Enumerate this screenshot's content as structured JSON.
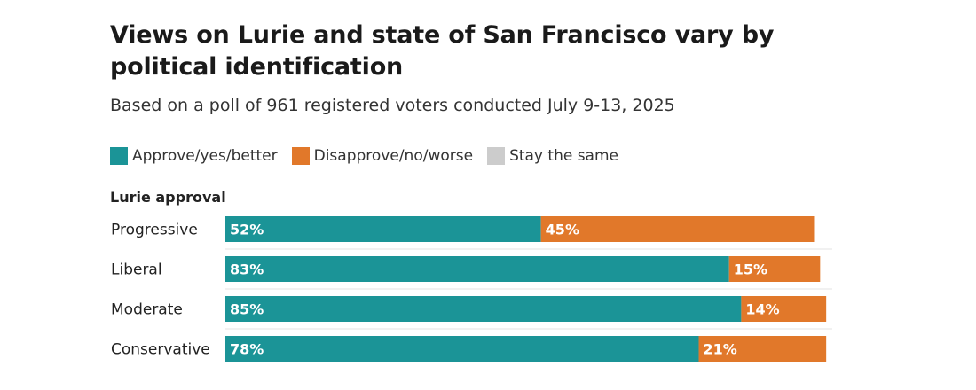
{
  "title": "Views on Lurie and state of San Francisco vary by political identification",
  "subtitle": "Based on a poll of 961 registered voters conducted July 9-13, 2025",
  "colors": {
    "approve": "#1b9497",
    "disapprove": "#e1782a",
    "same": "#cccccc",
    "divider": "#e3e3e3"
  },
  "legend": [
    {
      "label": "Approve/yes/better",
      "color": "#1b9497"
    },
    {
      "label": "Disapprove/no/worse",
      "color": "#e1782a"
    },
    {
      "label": "Stay the same",
      "color": "#cccccc"
    }
  ],
  "chart_data": {
    "type": "bar",
    "orientation": "horizontal",
    "stacked": true,
    "section_title": "Lurie approval",
    "categories": [
      "Progressive",
      "Liberal",
      "Moderate",
      "Conservative"
    ],
    "series": [
      {
        "name": "Approve/yes/better",
        "values": [
          52,
          83,
          85,
          78
        ],
        "labels": [
          "52%",
          "83%",
          "85%",
          "78%"
        ]
      },
      {
        "name": "Disapprove/no/worse",
        "values": [
          45,
          15,
          14,
          21
        ],
        "labels": [
          "45%",
          "15%",
          "14%",
          "21%"
        ]
      }
    ],
    "xlim": [
      0,
      100
    ],
    "grid": false
  }
}
